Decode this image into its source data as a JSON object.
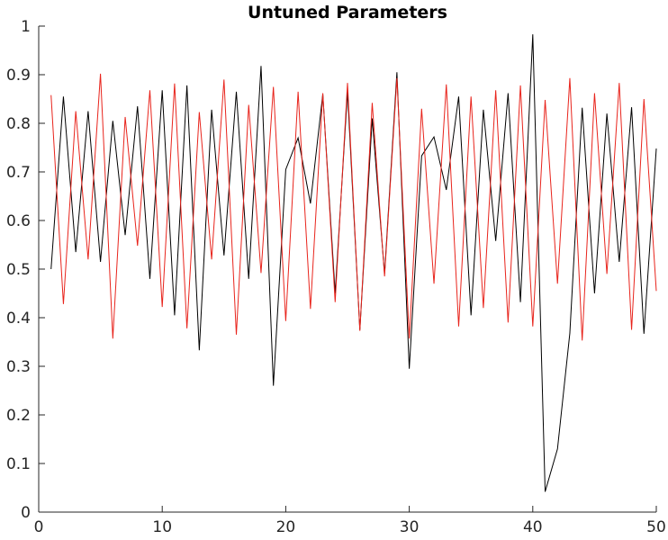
{
  "chart_data": {
    "type": "line",
    "title": "Untuned Parameters",
    "xlabel": "",
    "ylabel": "",
    "xlim": [
      0,
      50
    ],
    "ylim": [
      0,
      1
    ],
    "xticks": [
      0,
      10,
      20,
      30,
      40,
      50
    ],
    "yticks": [
      0,
      0.1,
      0.2,
      0.3,
      0.4,
      0.5,
      0.6,
      0.7,
      0.8,
      0.9,
      1
    ],
    "xtick_labels": [
      "0",
      "10",
      "20",
      "30",
      "40",
      "50"
    ],
    "ytick_labels": [
      "0",
      "0.1",
      "0.2",
      "0.3",
      "0.4",
      "0.5",
      "0.6",
      "0.7",
      "0.8",
      "0.9",
      "1"
    ],
    "grid": false,
    "legend": "none",
    "x": [
      1,
      2,
      3,
      4,
      5,
      6,
      7,
      8,
      9,
      10,
      11,
      12,
      13,
      14,
      15,
      16,
      17,
      18,
      19,
      20,
      21,
      22,
      23,
      24,
      25,
      26,
      27,
      28,
      29,
      30,
      31,
      32,
      33,
      34,
      35,
      36,
      37,
      38,
      39,
      40,
      41,
      42,
      43,
      44,
      45,
      46,
      47,
      48,
      49,
      50
    ],
    "series": [
      {
        "color": "#000000",
        "values": [
          0.5,
          0.855,
          0.535,
          0.825,
          0.515,
          0.805,
          0.57,
          0.835,
          0.48,
          0.868,
          0.405,
          0.878,
          0.333,
          0.828,
          0.528,
          0.865,
          0.48,
          0.918,
          0.26,
          0.705,
          0.77,
          0.635,
          0.86,
          0.45,
          0.865,
          0.375,
          0.81,
          0.49,
          0.905,
          0.295,
          0.733,
          0.772,
          0.663,
          0.855,
          0.405,
          0.828,
          0.558,
          0.862,
          0.432,
          0.983,
          0.042,
          0.13,
          0.368,
          0.832,
          0.45,
          0.82,
          0.515,
          0.833,
          0.367,
          0.748
        ]
      },
      {
        "color": "#e8241c",
        "values": [
          0.858,
          0.428,
          0.825,
          0.52,
          0.902,
          0.357,
          0.813,
          0.548,
          0.868,
          0.422,
          0.882,
          0.378,
          0.823,
          0.52,
          0.89,
          0.365,
          0.838,
          0.492,
          0.875,
          0.393,
          0.865,
          0.418,
          0.862,
          0.432,
          0.883,
          0.373,
          0.842,
          0.485,
          0.893,
          0.357,
          0.83,
          0.47,
          0.88,
          0.382,
          0.855,
          0.42,
          0.868,
          0.39,
          0.878,
          0.382,
          0.848,
          0.47,
          0.893,
          0.353,
          0.862,
          0.49,
          0.883,
          0.375,
          0.85,
          0.455
        ]
      }
    ]
  }
}
